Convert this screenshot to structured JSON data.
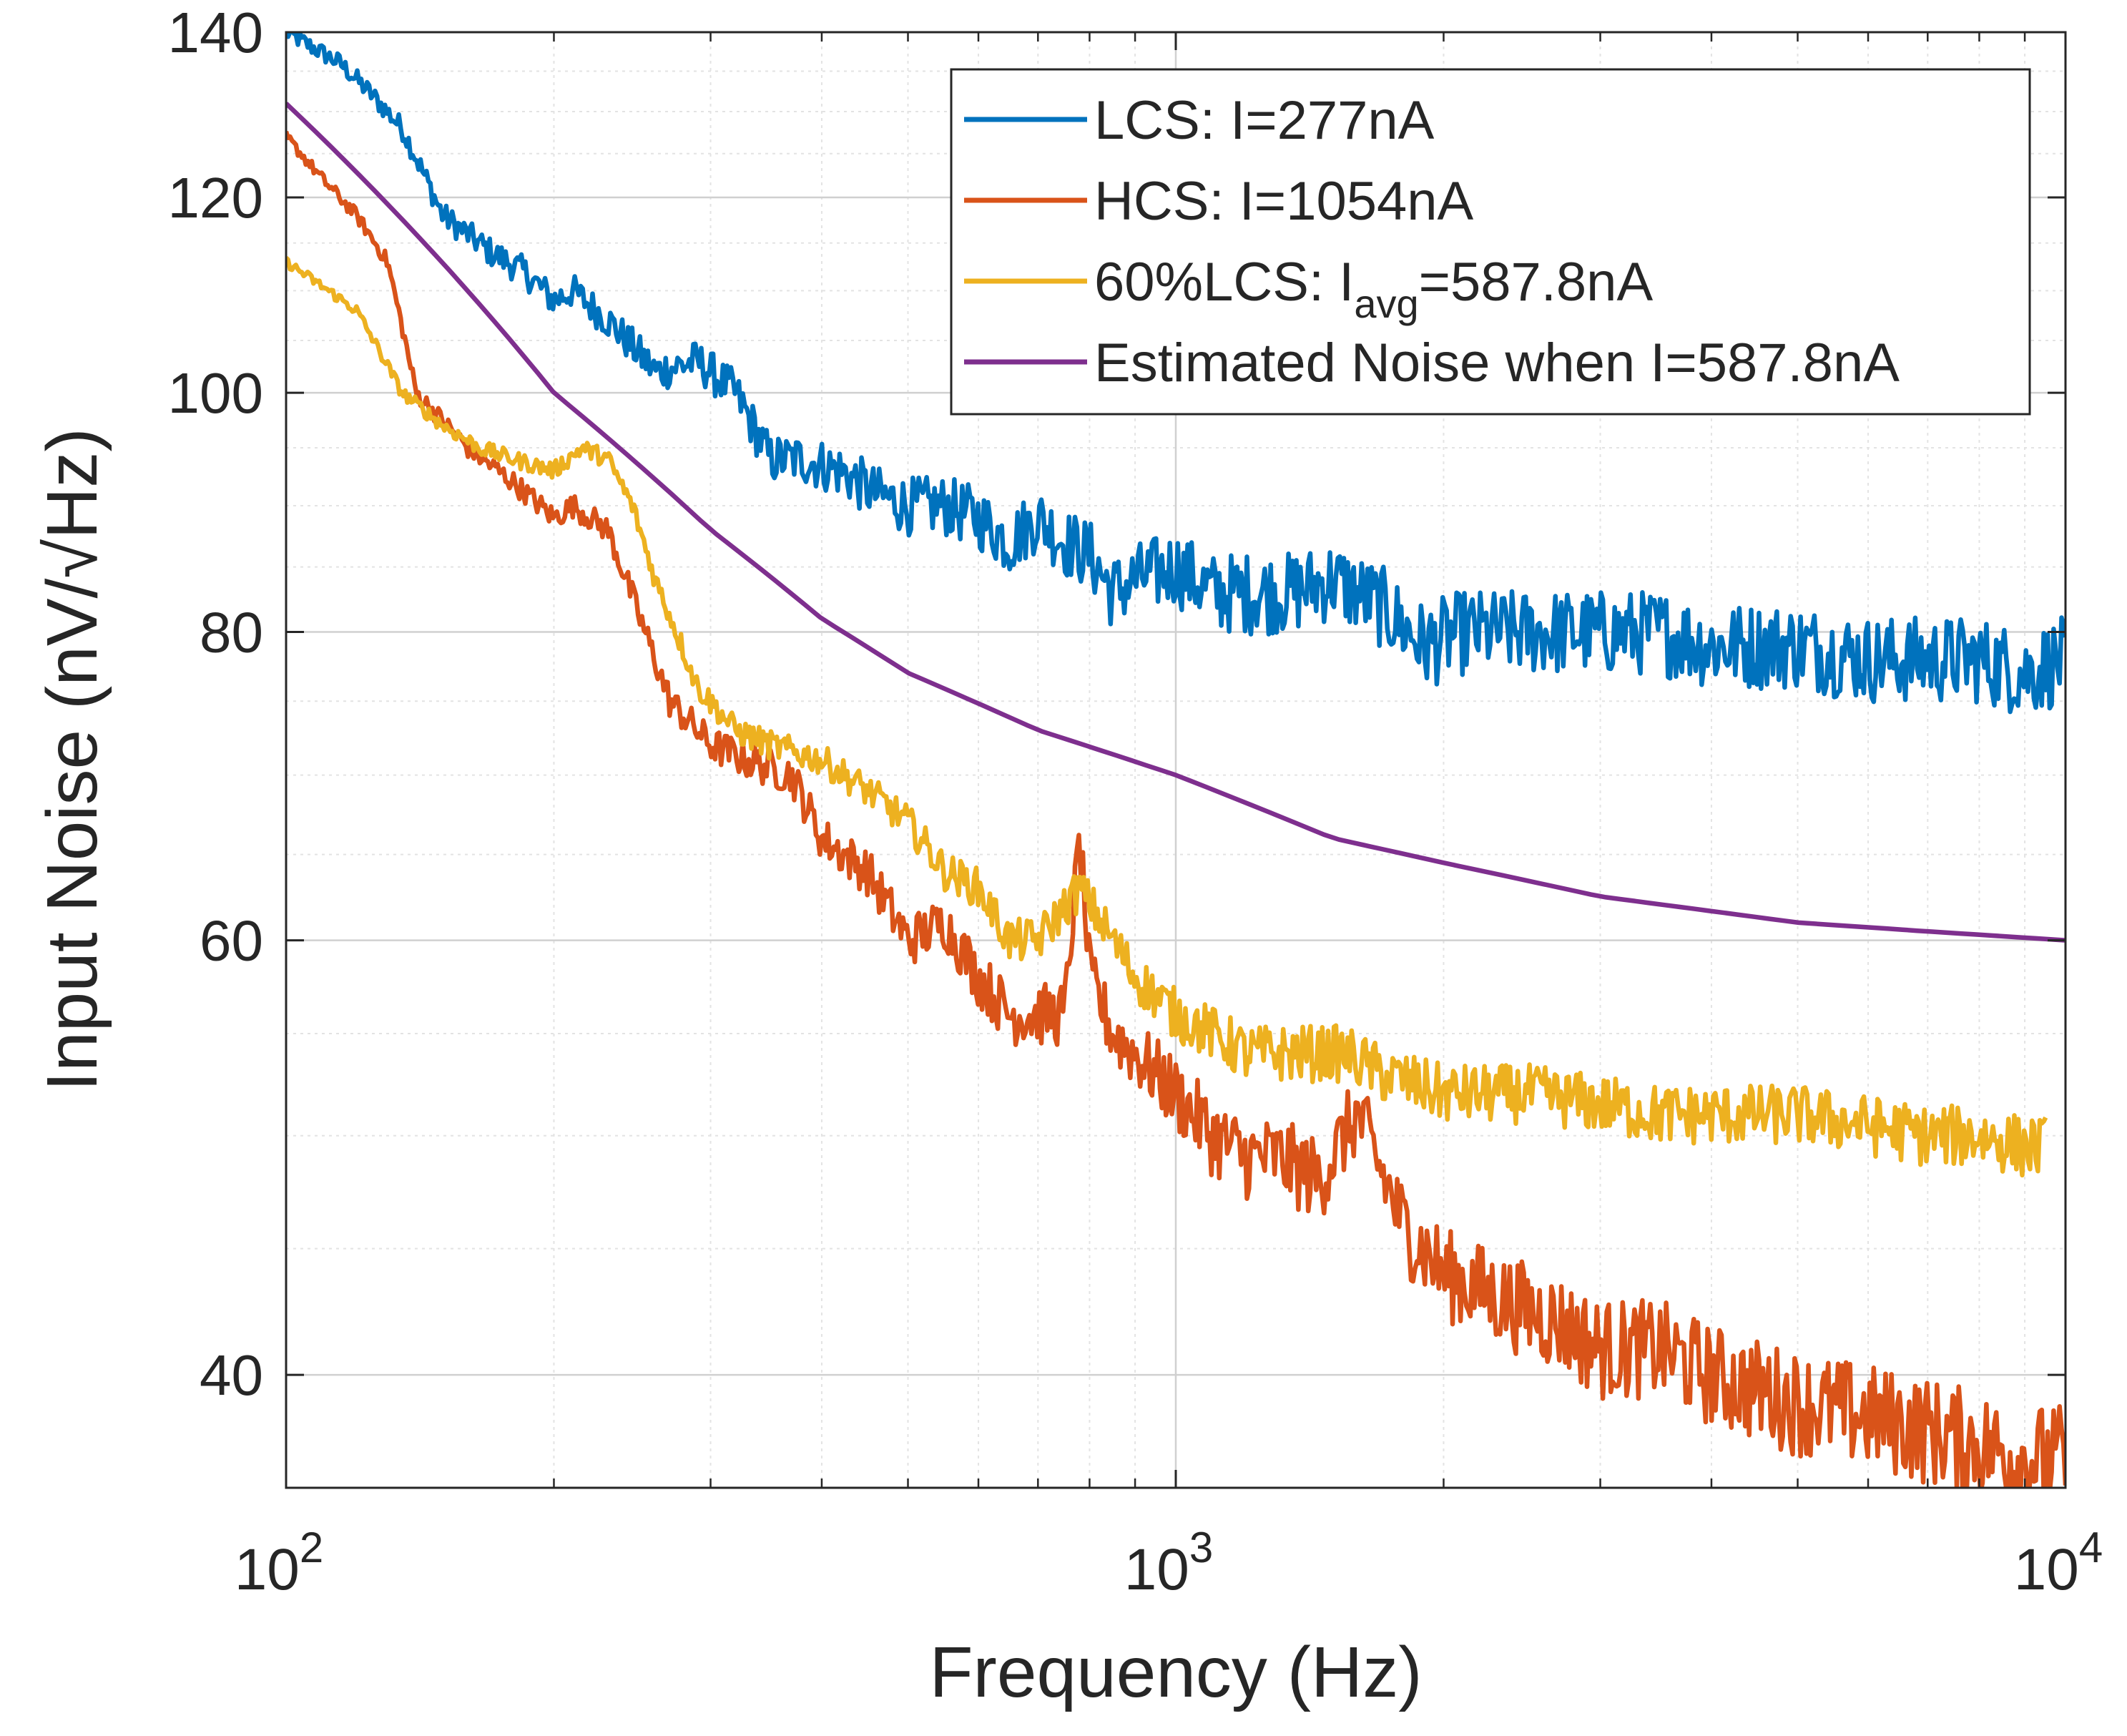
{
  "chart_data": {
    "type": "line",
    "title": "",
    "xlabel": "Frequency (Hz)",
    "ylabel": "Input Noise (nV/√Hz)",
    "xscale": "log",
    "yscale": "log",
    "xlim": [
      100,
      10000
    ],
    "ylim": [
      36,
      140
    ],
    "xticks": [
      {
        "value": 100,
        "base": "10",
        "exp": "2"
      },
      {
        "value": 1000,
        "base": "10",
        "exp": "3"
      },
      {
        "value": 10000,
        "base": "10",
        "exp": "4"
      }
    ],
    "yticks": [
      {
        "value": 40,
        "label": "40"
      },
      {
        "value": 60,
        "label": "60"
      },
      {
        "value": 80,
        "label": "80"
      },
      {
        "value": 100,
        "label": "100"
      },
      {
        "value": 120,
        "label": "120"
      },
      {
        "value": 140,
        "label": "140"
      }
    ],
    "grid": true,
    "legend_position": "top-right",
    "series": [
      {
        "name": "LCS: I=277nA",
        "legend_main": "LCS: I=277nA",
        "color": "#0072BD",
        "x": [
          100,
          115,
          125,
          135,
          150,
          170,
          185,
          200,
          210,
          230,
          260,
          290,
          320,
          350,
          380,
          420,
          460,
          500,
          550,
          600,
          650,
          700,
          750,
          800,
          850,
          900,
          1000,
          1100,
          1200,
          1350,
          1500,
          1700,
          1900,
          2100,
          2500,
          3000,
          3500,
          4000,
          5000,
          6000,
          7000,
          8000,
          9000,
          10000
        ],
        "y": [
          140,
          136,
          132,
          128,
          118,
          114,
          112,
          109,
          110,
          107,
          102,
          103,
          100,
          94,
          94,
          93,
          91,
          90,
          90,
          89,
          87,
          89,
          87,
          86,
          83,
          84,
          85,
          83,
          83,
          83,
          84,
          82,
          79,
          80,
          80,
          80,
          80,
          79,
          79,
          78,
          78,
          78,
          77,
          78
        ],
        "noise": 2.0
      },
      {
        "name": "HCS: I=1054nA",
        "legend_main": "HCS: I=1054nA",
        "color": "#D95319",
        "x": [
          100,
          110,
          120,
          130,
          140,
          160,
          180,
          200,
          210,
          230,
          250,
          270,
          300,
          330,
          370,
          400,
          450,
          500,
          550,
          600,
          650,
          700,
          750,
          780,
          800,
          850,
          900,
          1000,
          1100,
          1200,
          1300,
          1450,
          1600,
          1800,
          2000,
          2300,
          2700,
          3000,
          3500,
          4000,
          5000,
          6000,
          7000,
          8000,
          9000,
          10000
        ],
        "y": [
          127,
          122,
          118,
          113,
          100,
          95,
          92,
          89,
          90,
          88,
          81,
          75,
          72,
          71,
          70,
          66,
          64,
          60,
          61,
          58,
          56,
          56,
          56,
          66,
          58,
          55,
          54,
          52,
          50,
          49,
          49,
          48,
          51,
          46,
          44,
          43,
          42,
          41,
          41,
          40,
          39,
          38.5,
          38,
          37.5,
          37,
          37
        ],
        "noise": 1.2
      },
      {
        "name": "60%LCS: Iavg=587.8nA",
        "legend_main": "60%LCS: I",
        "legend_sub": "avg",
        "legend_tail": "=587.8nA",
        "color": "#EDB120",
        "x": [
          100,
          120,
          135,
          150,
          165,
          180,
          200,
          215,
          230,
          245,
          260,
          290,
          320,
          350,
          400,
          450,
          500,
          550,
          600,
          650,
          700,
          780,
          850,
          900,
          1000,
          1100,
          1200,
          1350,
          1550,
          1700,
          2000,
          2500,
          3000,
          3500,
          4000,
          5000,
          6000,
          7000,
          8000,
          9000,
          9500
        ],
        "y": [
          113,
          108,
          100,
          97,
          95,
          94,
          93,
          95,
          94,
          90,
          84,
          76,
          73,
          72,
          71,
          69,
          67,
          64,
          63,
          60,
          60,
          63,
          60,
          58,
          56,
          55,
          54,
          54,
          54,
          53,
          52,
          52,
          51.5,
          51,
          51,
          51,
          50.5,
          50,
          50,
          49.5,
          49.5
        ],
        "noise": 0.9
      },
      {
        "name": "Estimated Noise when I=587.8nA",
        "legend_main": "Estimated Noise when I=587.8nA",
        "color": "#7E2F8E",
        "x": [
          100,
          200,
          300,
          400,
          500,
          700,
          1000,
          1500,
          2000,
          3000,
          5000,
          7000,
          10000
        ],
        "y": [
          131,
          100,
          88,
          81,
          77,
          73,
          70,
          66,
          64.5,
          62.5,
          61,
          60.5,
          60
        ],
        "noise": 0
      }
    ]
  }
}
